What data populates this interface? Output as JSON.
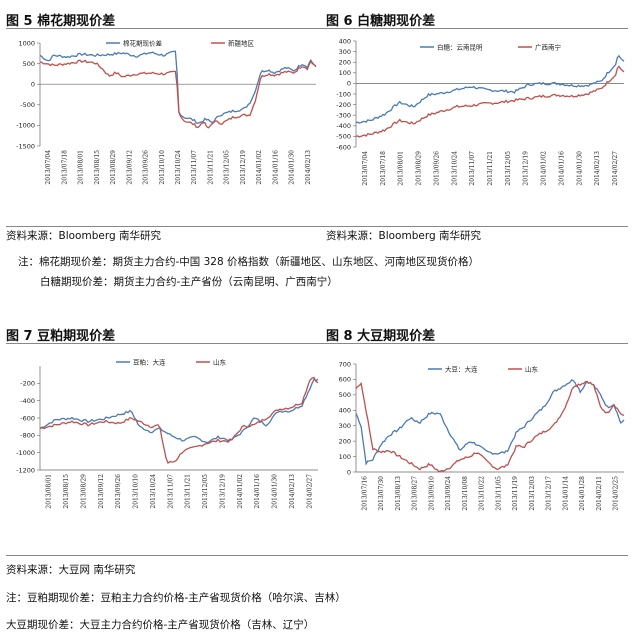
{
  "figures": [
    {
      "title": "图 5 棉花期现价差"
    },
    {
      "title": "图 6 白糖期现价差"
    },
    {
      "title": "图 7 豆粕期现价差"
    },
    {
      "title": "图 8 大豆期现价差"
    }
  ],
  "sources": {
    "top_left": "资料来源：Bloomberg 南华研究",
    "top_right": "资料来源：Bloomberg 南华研究",
    "bottom": "资料来源：大豆网  南华研究"
  },
  "notes": {
    "note1": "注：棉花期现价差：期货主力合约-中国 328 价格指数（新疆地区、山东地区、河南地区现货价格）",
    "note2": "白糖期现价差：期货主力合约-主产省份（云南昆明、广西南宁）",
    "note3": "注：豆粕期现价差：豆粕主力合约价格-主产省现货价格（哈尔滨、吉林）",
    "note4": "大豆期现价差：大豆主力合约价格-主产省现货价格（吉林、辽宁）"
  },
  "colors": {
    "blue": "#4a7ab8",
    "red": "#c0504d"
  },
  "chart_data": [
    {
      "type": "line",
      "ylim": [
        -1500,
        1000
      ],
      "yticks": [
        1000,
        500,
        0,
        -500,
        -1000,
        -1500
      ],
      "xticks": [
        "2013/07/04",
        "2013/07/18",
        "2013/08/01",
        "2013/08/15",
        "2013/08/29",
        "2013/09/12",
        "2013/09/26",
        "2013/10/10",
        "2013/10/24",
        "2013/11/07",
        "2013/11/21",
        "2013/12/05",
        "2013/12/19",
        "2014/01/02",
        "2014/01/16",
        "2014/01/30",
        "2014/02/13"
      ],
      "n": 160,
      "series": [
        {
          "name": "棉花期现价差",
          "color": "#4a7ab8",
          "anchors": [
            [
              0,
              700
            ],
            [
              6,
              560
            ],
            [
              10,
              700
            ],
            [
              20,
              660
            ],
            [
              30,
              730
            ],
            [
              40,
              700
            ],
            [
              50,
              720
            ],
            [
              60,
              760
            ],
            [
              70,
              680
            ],
            [
              80,
              770
            ],
            [
              90,
              700
            ],
            [
              95,
              760
            ],
            [
              99,
              790
            ],
            [
              100,
              -650
            ],
            [
              104,
              -800
            ],
            [
              110,
              -850
            ],
            [
              115,
              -950
            ],
            [
              120,
              -850
            ],
            [
              125,
              -930
            ],
            [
              130,
              -750
            ],
            [
              140,
              -650
            ],
            [
              148,
              -600
            ],
            [
              152,
              -450
            ],
            [
              155,
              -250
            ],
            [
              157,
              -50
            ],
            [
              160,
              300
            ],
            [
              165,
              350
            ],
            [
              170,
              280
            ],
            [
              178,
              400
            ],
            [
              184,
              330
            ],
            [
              190,
              500
            ],
            [
              194,
              420
            ],
            [
              196,
              600
            ],
            [
              200,
              400
            ]
          ]
        },
        {
          "name": "新疆地区",
          "color": "#c0504d",
          "anchors": [
            [
              0,
              540
            ],
            [
              10,
              460
            ],
            [
              20,
              500
            ],
            [
              30,
              560
            ],
            [
              40,
              520
            ],
            [
              45,
              380
            ],
            [
              50,
              200
            ],
            [
              55,
              280
            ],
            [
              60,
              180
            ],
            [
              70,
              250
            ],
            [
              80,
              270
            ],
            [
              90,
              250
            ],
            [
              99,
              300
            ],
            [
              100,
              -650
            ],
            [
              104,
              -880
            ],
            [
              110,
              -950
            ],
            [
              115,
              -1050
            ],
            [
              118,
              -900
            ],
            [
              122,
              -1080
            ],
            [
              126,
              -900
            ],
            [
              132,
              -950
            ],
            [
              140,
              -800
            ],
            [
              148,
              -750
            ],
            [
              152,
              -750
            ],
            [
              156,
              -400
            ],
            [
              160,
              180
            ],
            [
              165,
              250
            ],
            [
              170,
              220
            ],
            [
              178,
              300
            ],
            [
              184,
              280
            ],
            [
              190,
              450
            ],
            [
              194,
              380
            ],
            [
              196,
              560
            ],
            [
              200,
              420
            ]
          ]
        }
      ]
    },
    {
      "type": "line",
      "ylim": [
        -600,
        400
      ],
      "yticks": [
        400,
        300,
        200,
        100,
        0,
        -100,
        -200,
        -300,
        -400,
        -500,
        -600
      ],
      "xticks": [
        "2013/07/04",
        "2013/07/18",
        "2013/08/01",
        "2013/08/29",
        "2013/09/26",
        "2013/10/24",
        "2013/11/07",
        "2013/11/21",
        "2013/12/05",
        "2013/12/19",
        "2014/01/02",
        "2014/01/16",
        "2014/01/30",
        "2014/02/13",
        "2014/02/27"
      ],
      "n": 160,
      "series": [
        {
          "name": "白糖：云南昆明",
          "color": "#4a7ab8",
          "anchors": [
            [
              0,
              -370
            ],
            [
              10,
              -350
            ],
            [
              20,
              -290
            ],
            [
              30,
              -180
            ],
            [
              40,
              -220
            ],
            [
              50,
              -110
            ],
            [
              60,
              -90
            ],
            [
              70,
              -60
            ],
            [
              80,
              -30
            ],
            [
              90,
              -60
            ],
            [
              100,
              -70
            ],
            [
              110,
              -80
            ],
            [
              120,
              -10
            ],
            [
              130,
              0
            ],
            [
              140,
              0
            ],
            [
              150,
              -20
            ],
            [
              160,
              -20
            ],
            [
              170,
              20
            ],
            [
              176,
              120
            ],
            [
              180,
              180
            ],
            [
              182,
              270
            ],
            [
              186,
              200
            ]
          ]
        },
        {
          "name": "广西南宁",
          "color": "#c0504d",
          "anchors": [
            [
              0,
              -500
            ],
            [
              10,
              -480
            ],
            [
              20,
              -440
            ],
            [
              30,
              -350
            ],
            [
              40,
              -380
            ],
            [
              50,
              -300
            ],
            [
              60,
              -260
            ],
            [
              70,
              -220
            ],
            [
              80,
              -210
            ],
            [
              90,
              -190
            ],
            [
              100,
              -180
            ],
            [
              110,
              -160
            ],
            [
              120,
              -140
            ],
            [
              130,
              -120
            ],
            [
              140,
              -110
            ],
            [
              150,
              -120
            ],
            [
              160,
              -100
            ],
            [
              170,
              -50
            ],
            [
              176,
              30
            ],
            [
              180,
              80
            ],
            [
              182,
              170
            ],
            [
              186,
              100
            ]
          ]
        }
      ]
    },
    {
      "type": "line",
      "ylim": [
        -1200,
        0
      ],
      "yticks": [
        -200,
        -400,
        -600,
        -800,
        -1000,
        -1200
      ],
      "xticks": [
        "2013/08/01",
        "2013/08/15",
        "2013/08/29",
        "2013/09/12",
        "2013/09/26",
        "2013/10/10",
        "2013/10/24",
        "2013/11/07",
        "2013/11/21",
        "2013/12/05",
        "2013/12/19",
        "2014/01/02",
        "2014/01/16",
        "2014/01/30",
        "2014/02/13",
        "2014/02/27"
      ],
      "n": 140,
      "series": [
        {
          "name": "豆粕：大连",
          "color": "#4a7ab8",
          "anchors": [
            [
              0,
              -720
            ],
            [
              8,
              -620
            ],
            [
              16,
              -600
            ],
            [
              24,
              -640
            ],
            [
              32,
              -610
            ],
            [
              40,
              -560
            ],
            [
              46,
              -520
            ],
            [
              50,
              -700
            ],
            [
              56,
              -760
            ],
            [
              60,
              -720
            ],
            [
              66,
              -800
            ],
            [
              72,
              -860
            ],
            [
              78,
              -820
            ],
            [
              84,
              -880
            ],
            [
              90,
              -820
            ],
            [
              96,
              -860
            ],
            [
              102,
              -760
            ],
            [
              108,
              -600
            ],
            [
              114,
              -680
            ],
            [
              120,
              -520
            ],
            [
              126,
              -520
            ],
            [
              132,
              -450
            ],
            [
              136,
              -250
            ],
            [
              138,
              -150
            ],
            [
              140,
              -160
            ]
          ]
        },
        {
          "name": "山东",
          "color": "#c0504d",
          "anchors": [
            [
              0,
              -720
            ],
            [
              8,
              -680
            ],
            [
              16,
              -640
            ],
            [
              24,
              -680
            ],
            [
              32,
              -640
            ],
            [
              40,
              -660
            ],
            [
              46,
              -600
            ],
            [
              50,
              -640
            ],
            [
              56,
              -700
            ],
            [
              60,
              -680
            ],
            [
              64,
              -1120
            ],
            [
              68,
              -1100
            ],
            [
              72,
              -980
            ],
            [
              78,
              -940
            ],
            [
              84,
              -890
            ],
            [
              90,
              -860
            ],
            [
              96,
              -870
            ],
            [
              102,
              -700
            ],
            [
              108,
              -680
            ],
            [
              114,
              -600
            ],
            [
              120,
              -500
            ],
            [
              126,
              -480
            ],
            [
              132,
              -420
            ],
            [
              136,
              -150
            ],
            [
              138,
              -130
            ],
            [
              140,
              -200
            ]
          ]
        }
      ]
    },
    {
      "type": "line",
      "ylim": [
        0,
        700
      ],
      "yticks": [
        700,
        600,
        500,
        400,
        300,
        200,
        100,
        0
      ],
      "xticks": [
        "2013/07/16",
        "2013/07/30",
        "2013/08/13",
        "2013/08/27",
        "2013/09/10",
        "2013/09/24",
        "2013/10/08",
        "2013/10/22",
        "2013/11/05",
        "2013/11/19",
        "2013/12/03",
        "2013/12/17",
        "2014/01/14",
        "2014/01/28",
        "2014/02/11",
        "2014/02/25"
      ],
      "n": 160,
      "series": [
        {
          "name": "大豆：大连",
          "color": "#4a7ab8",
          "anchors": [
            [
              0,
              380
            ],
            [
              3,
              300
            ],
            [
              6,
              60
            ],
            [
              10,
              80
            ],
            [
              15,
              180
            ],
            [
              20,
              240
            ],
            [
              26,
              280
            ],
            [
              32,
              350
            ],
            [
              38,
              320
            ],
            [
              44,
              380
            ],
            [
              50,
              380
            ],
            [
              56,
              250
            ],
            [
              62,
              140
            ],
            [
              68,
              200
            ],
            [
              72,
              180
            ],
            [
              78,
              130
            ],
            [
              84,
              120
            ],
            [
              90,
              130
            ],
            [
              96,
              260
            ],
            [
              100,
              290
            ],
            [
              106,
              360
            ],
            [
              112,
              420
            ],
            [
              118,
              520
            ],
            [
              124,
              560
            ],
            [
              130,
              600
            ],
            [
              134,
              520
            ],
            [
              138,
              590
            ],
            [
              142,
              560
            ],
            [
              146,
              500
            ],
            [
              150,
              420
            ],
            [
              154,
              440
            ],
            [
              158,
              320
            ],
            [
              160,
              330
            ]
          ]
        },
        {
          "name": "山东",
          "color": "#c0504d",
          "anchors": [
            [
              0,
              540
            ],
            [
              3,
              580
            ],
            [
              6,
              400
            ],
            [
              10,
              150
            ],
            [
              15,
              130
            ],
            [
              20,
              140
            ],
            [
              26,
              100
            ],
            [
              32,
              60
            ],
            [
              38,
              20
            ],
            [
              44,
              50
            ],
            [
              50,
              0
            ],
            [
              56,
              30
            ],
            [
              62,
              80
            ],
            [
              68,
              100
            ],
            [
              72,
              130
            ],
            [
              78,
              70
            ],
            [
              84,
              20
            ],
            [
              90,
              40
            ],
            [
              96,
              170
            ],
            [
              100,
              160
            ],
            [
              106,
              220
            ],
            [
              112,
              260
            ],
            [
              118,
              300
            ],
            [
              124,
              400
            ],
            [
              130,
              560
            ],
            [
              134,
              570
            ],
            [
              138,
              590
            ],
            [
              142,
              560
            ],
            [
              146,
              420
            ],
            [
              150,
              380
            ],
            [
              154,
              440
            ],
            [
              158,
              380
            ],
            [
              160,
              360
            ]
          ]
        }
      ]
    }
  ]
}
